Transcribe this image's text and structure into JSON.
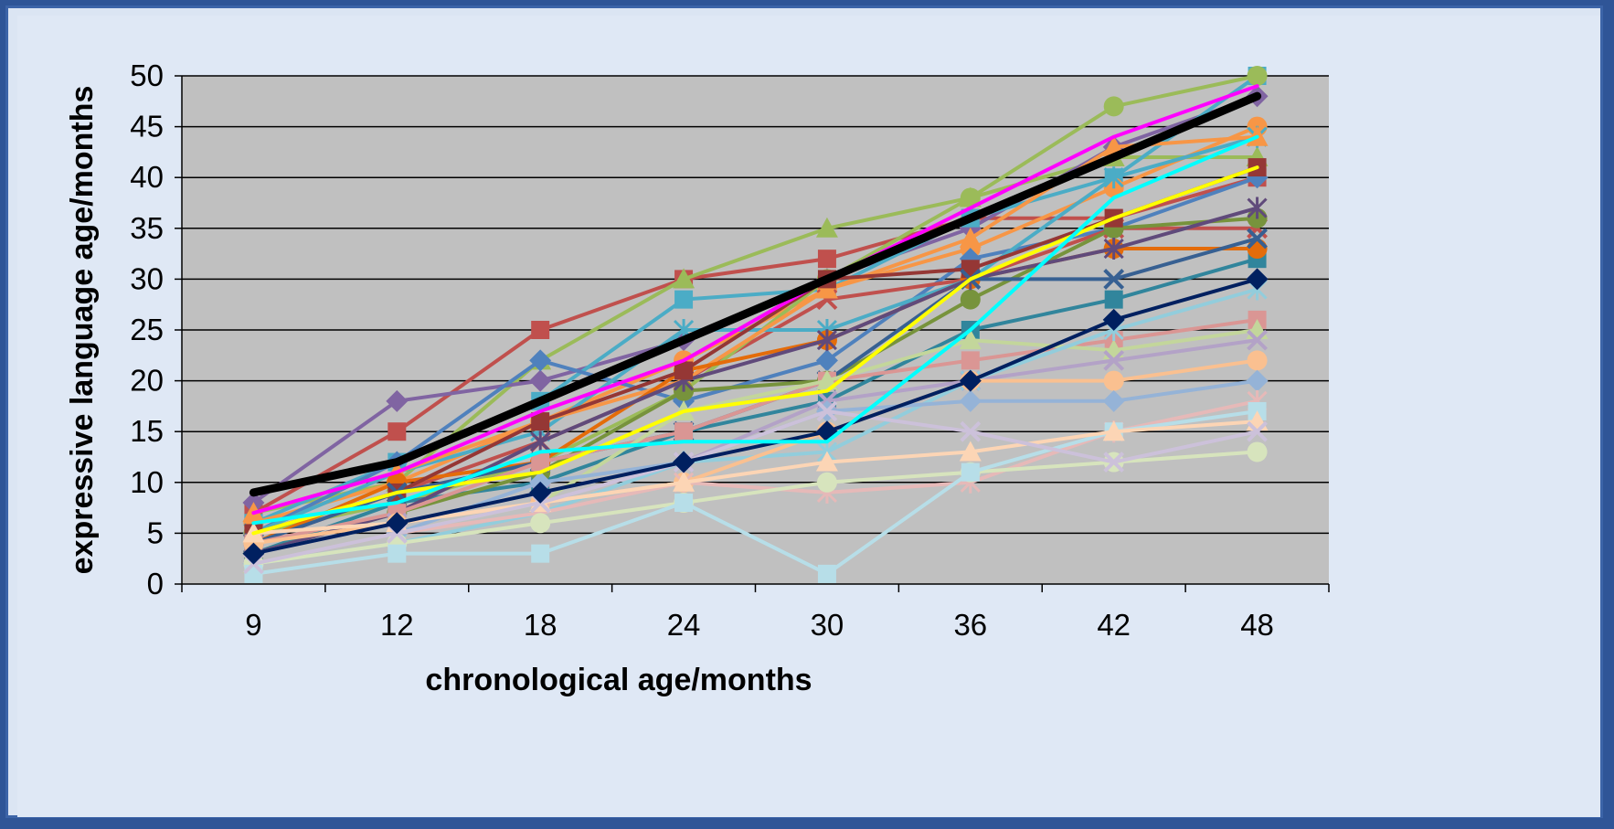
{
  "chart_data": {
    "type": "line",
    "title": "",
    "xlabel": "chronological age/months",
    "ylabel": "expressive language age/months",
    "categories": [
      "9",
      "12",
      "18",
      "24",
      "30",
      "36",
      "42",
      "48"
    ],
    "ylim": [
      0,
      50
    ],
    "yticks": [
      "0",
      "5",
      "10",
      "15",
      "20",
      "25",
      "30",
      "35",
      "40",
      "45",
      "50"
    ],
    "grid": true,
    "legend": "none",
    "plot_background": "#c0c0c0",
    "series": [
      {
        "color": "#000000",
        "marker": "none",
        "emphasis": true,
        "values": [
          9,
          12,
          18,
          24,
          30,
          36,
          42,
          48
        ]
      },
      {
        "color": "#c0504d",
        "marker": "square",
        "values": [
          7,
          15,
          25,
          30,
          32,
          36,
          36,
          40
        ]
      },
      {
        "color": "#9bbb59",
        "marker": "triangle",
        "values": [
          7,
          10,
          22,
          30,
          35,
          38,
          42,
          42
        ]
      },
      {
        "color": "#8064a2",
        "marker": "diamond",
        "values": [
          8,
          18,
          20,
          24,
          30,
          35,
          43,
          48
        ]
      },
      {
        "color": "#4bacc6",
        "marker": "square",
        "values": [
          6,
          12,
          18,
          28,
          29,
          36,
          40,
          50
        ]
      },
      {
        "color": "#f79646",
        "marker": "circle",
        "values": [
          6,
          10,
          16,
          22,
          29,
          33,
          39,
          45
        ]
      },
      {
        "color": "#4f81bd",
        "marker": "diamond",
        "values": [
          5,
          12,
          22,
          18,
          22,
          32,
          35,
          40
        ]
      },
      {
        "color": "#c0504d",
        "marker": "x",
        "values": [
          4,
          9,
          14,
          20,
          28,
          30,
          35,
          35
        ]
      },
      {
        "color": "#9bbb59",
        "marker": "circle",
        "values": [
          5,
          8,
          12,
          19,
          30,
          38,
          47,
          50
        ]
      },
      {
        "color": "#4bacc6",
        "marker": "star",
        "values": [
          5,
          11,
          15,
          25,
          25,
          30,
          40,
          44
        ]
      },
      {
        "color": "#f79646",
        "marker": "triangle",
        "values": [
          7,
          11,
          16,
          20,
          29,
          34,
          43,
          44
        ]
      },
      {
        "color": "#31859c",
        "marker": "square",
        "values": [
          3,
          8,
          10,
          15,
          18,
          25,
          28,
          32
        ]
      },
      {
        "color": "#e46c0a",
        "marker": "circle",
        "values": [
          4,
          10,
          12,
          21,
          24,
          30,
          33,
          33
        ]
      },
      {
        "color": "#77933c",
        "marker": "circle",
        "values": [
          3,
          7,
          11,
          19,
          20,
          28,
          35,
          36
        ]
      },
      {
        "color": "#604a7b",
        "marker": "star",
        "values": [
          3,
          7,
          14,
          20,
          24,
          30,
          33,
          37
        ]
      },
      {
        "color": "#953735",
        "marker": "square",
        "values": [
          5,
          9,
          16,
          21,
          30,
          31,
          36,
          41
        ]
      },
      {
        "color": "#376092",
        "marker": "x",
        "values": [
          4,
          9,
          12,
          15,
          20,
          30,
          30,
          34
        ]
      },
      {
        "color": "#da9694",
        "marker": "square",
        "values": [
          4,
          7,
          12,
          15,
          20,
          22,
          24,
          26
        ]
      },
      {
        "color": "#c3d69b",
        "marker": "triangle",
        "values": [
          2,
          5,
          8,
          17,
          20,
          24,
          23,
          25
        ]
      },
      {
        "color": "#b3a2c7",
        "marker": "x",
        "values": [
          3,
          6,
          9,
          12,
          18,
          20,
          22,
          24
        ]
      },
      {
        "color": "#92cddc",
        "marker": "star",
        "values": [
          2,
          4,
          7,
          12,
          13,
          20,
          25,
          29
        ]
      },
      {
        "color": "#fac090",
        "marker": "circle",
        "values": [
          4,
          6,
          8,
          10,
          15,
          20,
          20,
          22
        ]
      },
      {
        "color": "#95b3d7",
        "marker": "diamond",
        "values": [
          2,
          5,
          10,
          12,
          17,
          18,
          18,
          20
        ]
      },
      {
        "color": "#e6b9b8",
        "marker": "star",
        "values": [
          2,
          5,
          7,
          10,
          9,
          10,
          15,
          18
        ]
      },
      {
        "color": "#d7e4bd",
        "marker": "circle",
        "values": [
          2,
          4,
          6,
          8,
          10,
          11,
          12,
          13
        ]
      },
      {
        "color": "#b7dee8",
        "marker": "square",
        "values": [
          1,
          3,
          3,
          8,
          1,
          11,
          15,
          17
        ]
      },
      {
        "color": "#fcd5b5",
        "marker": "triangle",
        "values": [
          5,
          6,
          8,
          10,
          12,
          13,
          15,
          16
        ]
      },
      {
        "color": "#ccc1da",
        "marker": "x",
        "values": [
          2,
          5,
          8,
          12,
          17,
          15,
          12,
          15
        ]
      },
      {
        "color": "#002060",
        "marker": "diamond",
        "values": [
          3,
          6,
          9,
          12,
          15,
          20,
          26,
          30
        ]
      },
      {
        "color": "#ffff00",
        "marker": "none",
        "values": [
          5,
          9,
          11,
          17,
          19,
          30,
          36,
          41
        ]
      },
      {
        "color": "#00ffff",
        "marker": "none",
        "values": [
          6,
          8,
          13,
          14,
          14,
          25,
          38,
          44
        ]
      },
      {
        "color": "#ff00ff",
        "marker": "none",
        "values": [
          7,
          11,
          17,
          22,
          30,
          37,
          44,
          49
        ]
      }
    ]
  }
}
